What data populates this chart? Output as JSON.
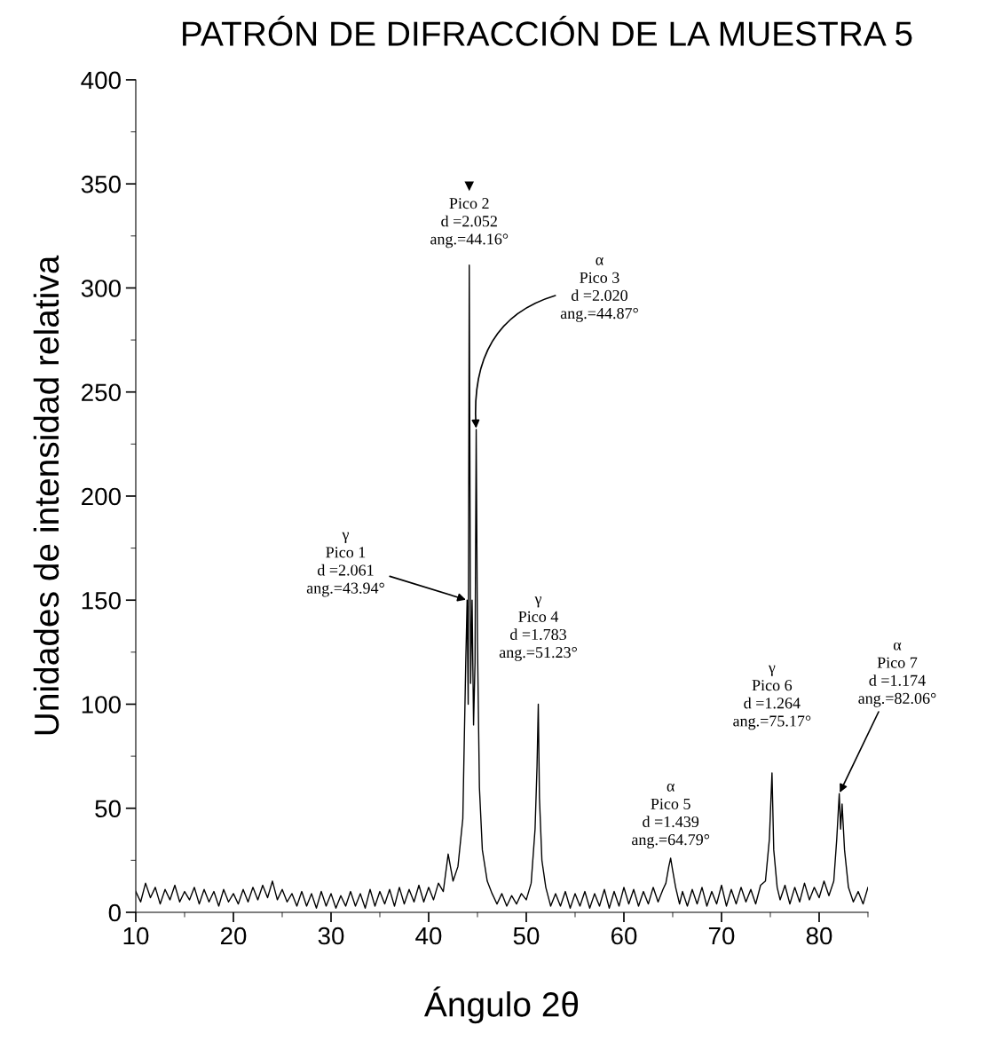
{
  "chart_data": {
    "type": "line",
    "title": "PATRÓN DE DIFRACCIÓN DE LA MUESTRA 5",
    "xlabel": "Ángulo 2θ",
    "ylabel": "Unidades de intensidad relativa",
    "xlim": [
      10,
      85
    ],
    "xticks": [
      10,
      20,
      30,
      40,
      50,
      60,
      70,
      80
    ],
    "ylim": [
      0,
      400
    ],
    "yticks": [
      0,
      50,
      100,
      150,
      200,
      250,
      300,
      350,
      400
    ],
    "grid": false,
    "legend": false,
    "marker": "none",
    "line_style": "solid",
    "series": [
      {
        "color": "#000000",
        "x": [
          10,
          10.5,
          11,
          11.5,
          12,
          12.5,
          13,
          13.5,
          14,
          14.5,
          15,
          15.5,
          16,
          16.5,
          17,
          17.5,
          18,
          18.5,
          19,
          19.5,
          20,
          20.5,
          21,
          21.5,
          22,
          22.5,
          23,
          23.5,
          24,
          24.5,
          25,
          25.5,
          26,
          26.5,
          27,
          27.5,
          28,
          28.5,
          29,
          29.5,
          30,
          30.5,
          31,
          31.5,
          32,
          32.5,
          33,
          33.5,
          34,
          34.5,
          35,
          35.5,
          36,
          36.5,
          37,
          37.5,
          38,
          38.5,
          39,
          39.5,
          40,
          40.5,
          41,
          41.5,
          42,
          42.5,
          43,
          43.5,
          43.8,
          43.94,
          44.05,
          44.16,
          44.3,
          44.45,
          44.6,
          44.75,
          44.87,
          45.0,
          45.2,
          45.5,
          46,
          46.5,
          47,
          47.5,
          48,
          48.5,
          49,
          49.5,
          50,
          50.5,
          50.9,
          51.1,
          51.23,
          51.35,
          51.6,
          52,
          52.5,
          53,
          53.5,
          54,
          54.5,
          55,
          55.5,
          56,
          56.5,
          57,
          57.5,
          58,
          58.5,
          59,
          59.5,
          60,
          60.5,
          61,
          61.5,
          62,
          62.5,
          63,
          63.5,
          64,
          64.3,
          64.6,
          64.79,
          65,
          65.3,
          65.7,
          66,
          66.5,
          67,
          67.5,
          68,
          68.5,
          69,
          69.5,
          70,
          70.5,
          71,
          71.5,
          72,
          72.5,
          73,
          73.5,
          74,
          74.5,
          74.9,
          75.17,
          75.35,
          75.7,
          76,
          76.5,
          77,
          77.5,
          78,
          78.5,
          79,
          79.5,
          80,
          80.5,
          81,
          81.5,
          81.8,
          82.06,
          82.2,
          82.35,
          82.6,
          83,
          83.5,
          84,
          84.5,
          85
        ],
        "values": [
          10,
          5,
          14,
          7,
          12,
          4,
          11,
          6,
          13,
          5,
          10,
          6,
          12,
          4,
          11,
          5,
          10,
          3,
          11,
          5,
          9,
          4,
          11,
          5,
          12,
          6,
          13,
          7,
          15,
          6,
          11,
          5,
          9,
          3,
          10,
          3,
          9,
          2,
          10,
          3,
          9,
          2,
          8,
          3,
          10,
          3,
          9,
          2,
          11,
          3,
          10,
          4,
          11,
          3,
          12,
          4,
          11,
          5,
          13,
          5,
          12,
          6,
          14,
          10,
          28,
          15,
          22,
          45,
          120,
          150,
          100,
          311,
          110,
          150,
          90,
          120,
          232,
          130,
          60,
          30,
          15,
          9,
          4,
          9,
          3,
          8,
          4,
          9,
          6,
          14,
          40,
          70,
          100,
          55,
          25,
          12,
          3,
          9,
          3,
          10,
          2,
          9,
          3,
          10,
          2,
          9,
          3,
          11,
          2,
          10,
          3,
          12,
          4,
          11,
          3,
          10,
          4,
          12,
          5,
          11,
          14,
          22,
          26,
          20,
          12,
          4,
          10,
          3,
          11,
          4,
          12,
          3,
          10,
          4,
          13,
          3,
          11,
          4,
          12,
          5,
          11,
          4,
          13,
          15,
          35,
          67,
          30,
          12,
          6,
          13,
          4,
          12,
          5,
          14,
          6,
          12,
          7,
          15,
          8,
          15,
          35,
          57,
          40,
          52,
          30,
          12,
          5,
          10,
          4,
          12
        ]
      }
    ],
    "annotations": [
      {
        "text": "γ\nPico 1\nd =2.061\nang.=43.94°",
        "x": 43.94,
        "y": 150
      },
      {
        "text": "▼\nPico 2\nd =2.052\nang.=44.16°",
        "x": 44.16,
        "y": 311
      },
      {
        "text": "α\nPico 3\nd =2.020\nang.=44.87°",
        "x": 44.87,
        "y": 232
      },
      {
        "text": "γ\nPico 4\nd =1.783\nang.=51.23°",
        "x": 51.23,
        "y": 100
      },
      {
        "text": "α\nPico 5\nd =1.439\nang.=64.79°",
        "x": 64.79,
        "y": 26
      },
      {
        "text": "γ\nPico 6\nd =1.264\nang.=75.17°",
        "x": 75.17,
        "y": 67
      },
      {
        "text": "α\nPico 7\nd =1.174\nang.=82.06°",
        "x": 82.06,
        "y": 57
      }
    ]
  }
}
